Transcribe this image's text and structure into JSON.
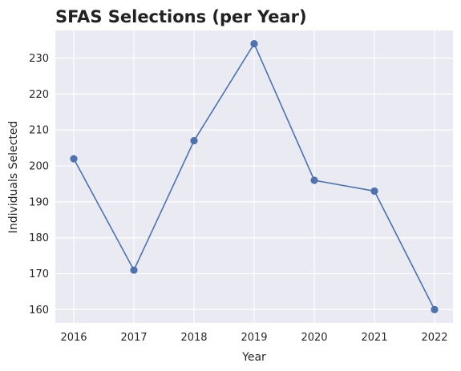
{
  "chart_data": {
    "type": "line",
    "title": "SFAS Selections (per Year)",
    "xlabel": "Year",
    "ylabel": "Individuals Selected",
    "categories": [
      "2016",
      "2017",
      "2018",
      "2019",
      "2020",
      "2021",
      "2022"
    ],
    "series": [
      {
        "values": [
          202,
          171,
          207,
          234,
          196,
          193,
          160
        ]
      }
    ],
    "yticks": [
      "160",
      "170",
      "180",
      "190",
      "200",
      "210",
      "220",
      "230"
    ],
    "ylim": [
      156.3,
      237.7
    ],
    "grid": true,
    "markers": true,
    "colors": {
      "line": "#4c72b0",
      "plot_background": "#eaeaf2",
      "grid": "#ffffff"
    }
  }
}
